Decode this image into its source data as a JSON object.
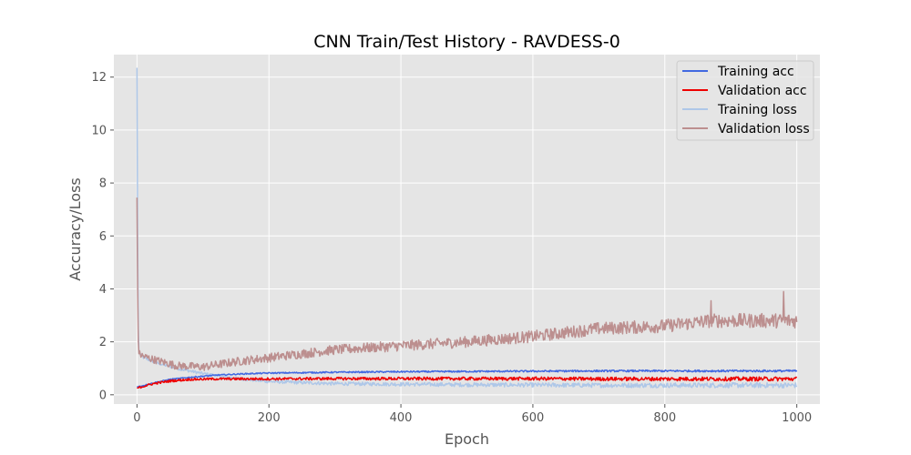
{
  "chart_data": {
    "type": "line",
    "title": "CNN Train/Test History -  RAVDESS-0",
    "xlabel": "Epoch",
    "ylabel": "Accuracy/Loss",
    "xlim": [
      -35,
      1035
    ],
    "ylim": [
      -0.35,
      12.85
    ],
    "xticks": [
      0,
      200,
      400,
      600,
      800,
      1000
    ],
    "yticks": [
      0,
      2,
      4,
      6,
      8,
      10,
      12
    ],
    "grid": true,
    "legend_position": "upper right",
    "style": {
      "background": "#e5e5e5",
      "grid_color": "#ffffff"
    },
    "series": [
      {
        "name": "Training acc",
        "color": "#4169e1",
        "points": [
          [
            0,
            0.3
          ],
          [
            10,
            0.35
          ],
          [
            25,
            0.45
          ],
          [
            50,
            0.58
          ],
          [
            80,
            0.66
          ],
          [
            120,
            0.74
          ],
          [
            160,
            0.79
          ],
          [
            200,
            0.82
          ],
          [
            300,
            0.85
          ],
          [
            400,
            0.87
          ],
          [
            500,
            0.88
          ],
          [
            600,
            0.89
          ],
          [
            700,
            0.9
          ],
          [
            800,
            0.9
          ],
          [
            900,
            0.9
          ],
          [
            1000,
            0.9
          ]
        ],
        "noise": 0.02
      },
      {
        "name": "Validation acc",
        "color": "#ee0000",
        "points": [
          [
            0,
            0.25
          ],
          [
            10,
            0.32
          ],
          [
            25,
            0.42
          ],
          [
            50,
            0.52
          ],
          [
            80,
            0.58
          ],
          [
            120,
            0.6
          ],
          [
            200,
            0.6
          ],
          [
            300,
            0.61
          ],
          [
            400,
            0.61
          ],
          [
            500,
            0.61
          ],
          [
            600,
            0.61
          ],
          [
            700,
            0.6
          ],
          [
            800,
            0.6
          ],
          [
            900,
            0.6
          ],
          [
            1000,
            0.6
          ]
        ],
        "noise": 0.04
      },
      {
        "name": "Training loss",
        "color": "#aec7e8",
        "points": [
          [
            0,
            12.35
          ],
          [
            1,
            6.0
          ],
          [
            2,
            2.5
          ],
          [
            3,
            1.6
          ],
          [
            10,
            1.4
          ],
          [
            30,
            1.2
          ],
          [
            60,
            1.0
          ],
          [
            100,
            0.8
          ],
          [
            150,
            0.62
          ],
          [
            200,
            0.5
          ],
          [
            300,
            0.42
          ],
          [
            400,
            0.4
          ],
          [
            500,
            0.38
          ],
          [
            600,
            0.37
          ],
          [
            700,
            0.36
          ],
          [
            800,
            0.36
          ],
          [
            900,
            0.36
          ],
          [
            1000,
            0.36
          ]
        ],
        "noise": 0.05
      },
      {
        "name": "Validation loss",
        "color": "#bc8f8f",
        "points": [
          [
            0,
            7.45
          ],
          [
            1,
            4.0
          ],
          [
            2,
            2.0
          ],
          [
            3,
            1.55
          ],
          [
            10,
            1.45
          ],
          [
            30,
            1.3
          ],
          [
            60,
            1.1
          ],
          [
            100,
            1.05
          ],
          [
            150,
            1.25
          ],
          [
            200,
            1.4
          ],
          [
            300,
            1.7
          ],
          [
            400,
            1.85
          ],
          [
            500,
            2.0
          ],
          [
            600,
            2.2
          ],
          [
            700,
            2.5
          ],
          [
            800,
            2.6
          ],
          [
            870,
            2.8
          ],
          [
            900,
            2.8
          ],
          [
            1000,
            2.8
          ]
        ],
        "noise": 0.14,
        "spikes": [
          [
            980,
            3.9
          ],
          [
            870,
            3.55
          ]
        ]
      }
    ]
  }
}
